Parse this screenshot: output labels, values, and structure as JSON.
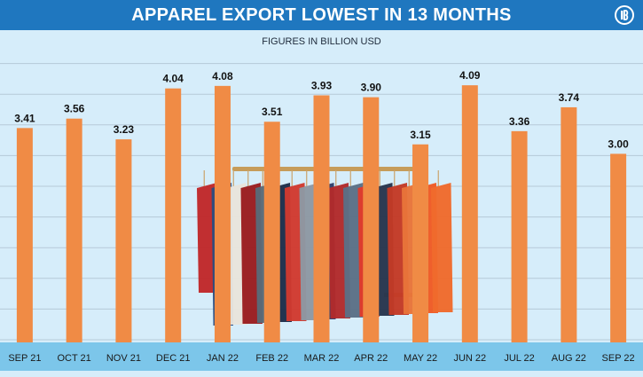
{
  "header": {
    "title": "APPAREL EXPORT LOWEST IN 13 MONTHS",
    "subtitle": "FIGURES IN BILLION USD",
    "logo_icon": "brand-logo-icon"
  },
  "colors": {
    "title_bar": "#1f77bf",
    "background": "#d6edfa",
    "bar": "#f08b45",
    "axis_strip": "#7cc6ea",
    "gridline": "#b5cad8",
    "text": "#111111"
  },
  "chart_data": {
    "type": "bar",
    "title": "APPAREL EXPORT LOWEST IN 13 MONTHS",
    "subtitle": "FIGURES IN BILLION USD",
    "categories": [
      "SEP 21",
      "OCT 21",
      "NOV 21",
      "DEC 21",
      "JAN 22",
      "FEB 22",
      "MAR 22",
      "APR 22",
      "MAY 22",
      "JUN 22",
      "JUL 22",
      "AUG 22",
      "SEP 22"
    ],
    "values": [
      3.41,
      3.56,
      3.23,
      4.04,
      4.08,
      3.51,
      3.93,
      3.9,
      3.15,
      4.09,
      3.36,
      3.74,
      3.0
    ],
    "data_labels": [
      "3.41",
      "3.56",
      "3.23",
      "4.04",
      "4.08",
      "3.51",
      "3.93",
      "3.90",
      "3.15",
      "4.09",
      "3.36",
      "3.74",
      "3.00"
    ],
    "ylim": [
      0,
      4.6
    ],
    "grid": true,
    "legend": "none",
    "background_image": "clothing-rack-photo"
  }
}
